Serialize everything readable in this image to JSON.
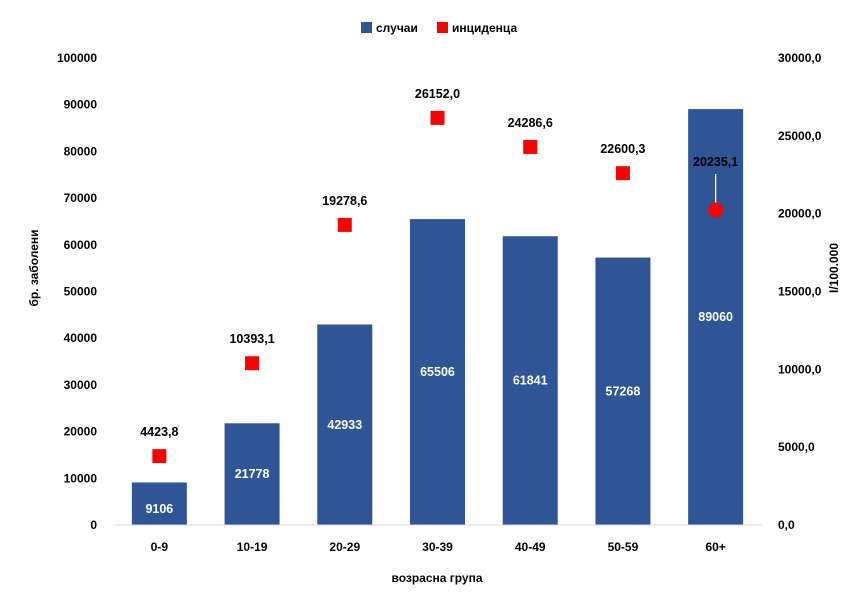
{
  "chart_data": {
    "type": "bar",
    "categories": [
      "0-9",
      "10-19",
      "20-29",
      "30-39",
      "40-49",
      "50-59",
      "60+"
    ],
    "series": [
      {
        "name": "случаи",
        "axis": "left",
        "mark": "bar",
        "color": "#2F5597",
        "values": [
          9106,
          21778,
          42933,
          65506,
          61841,
          57268,
          89060
        ],
        "labels": [
          "9106",
          "21778",
          "42933",
          "65506",
          "61841",
          "57268",
          "89060"
        ]
      },
      {
        "name": "инциденца",
        "axis": "right",
        "mark": "square",
        "color": "#FF0000",
        "values": [
          4423.8,
          10393.1,
          19278.6,
          26152.0,
          24286.6,
          22600.3,
          20235.1
        ],
        "labels": [
          "4423,8",
          "10393,1",
          "19278,6",
          "26152,0",
          "24286,6",
          "22600,3",
          "20235,1"
        ]
      }
    ],
    "xlabel": "возрасна група",
    "ylabel": "бр. заболени",
    "y2label": "I/100.000",
    "ylim": [
      0,
      100000
    ],
    "y2lim": [
      0,
      30000
    ],
    "yticks": [
      "0",
      "10000",
      "20000",
      "30000",
      "40000",
      "50000",
      "60000",
      "70000",
      "80000",
      "90000",
      "100000"
    ],
    "y2ticks": [
      "0,0",
      "5000,0",
      "10000,0",
      "15000,0",
      "20000,0",
      "25000,0",
      "30000,0"
    ],
    "legend_position": "top",
    "grid": false
  }
}
